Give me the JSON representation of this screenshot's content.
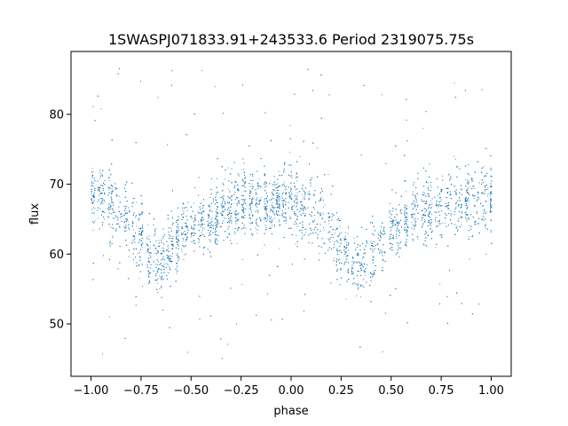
{
  "chart_data": {
    "type": "scatter",
    "title": "1SWASPJ071833.91+243533.6 Period 2319075.75s",
    "xlabel": "phase",
    "ylabel": "flux",
    "xlim": [
      -1.1,
      1.1
    ],
    "ylim": [
      42.5,
      89
    ],
    "xticks": [
      -1.0,
      -0.75,
      -0.5,
      -0.25,
      0.0,
      0.25,
      0.5,
      0.75,
      1.0
    ],
    "xtick_labels": [
      "−1.00",
      "−0.75",
      "−0.50",
      "−0.25",
      "0.00",
      "0.25",
      "0.50",
      "0.75",
      "1.00"
    ],
    "yticks": [
      50,
      60,
      70,
      80
    ],
    "ytick_labels": [
      "50",
      "60",
      "70",
      "80"
    ],
    "grid": false,
    "legend": "none",
    "point_color": "#1f77b4",
    "profile": {
      "description_phase": [
        -1.0,
        -0.95,
        -0.9,
        -0.85,
        -0.8,
        -0.75,
        -0.7,
        -0.65,
        -0.6,
        -0.55,
        -0.5,
        -0.45,
        -0.4,
        -0.35,
        -0.3,
        -0.25,
        -0.2,
        -0.15,
        -0.1,
        -0.05,
        0.0,
        0.05,
        0.1,
        0.15,
        0.2,
        0.25,
        0.3,
        0.35,
        0.4,
        0.45,
        0.5,
        0.55,
        0.6,
        0.65,
        0.7,
        0.75,
        0.8,
        0.85,
        0.9,
        0.95,
        1.0
      ],
      "median_flux": [
        68,
        68.5,
        67,
        65.5,
        64,
        62,
        60,
        59,
        61,
        63,
        64,
        64,
        65.5,
        66,
        66.5,
        67.5,
        67.5,
        67,
        67,
        68,
        68,
        67,
        66,
        65,
        63,
        61,
        59,
        58,
        60,
        62,
        64,
        64,
        65.5,
        66,
        66.5,
        67.5,
        67.5,
        67,
        67,
        68,
        68
      ],
      "spread": [
        3.5,
        3.5,
        3.5,
        3.5,
        3.5,
        3.5,
        3,
        3,
        3,
        3,
        2.5,
        2.5,
        3,
        3,
        3,
        3,
        3,
        3,
        3,
        3,
        3.5,
        3.5,
        3.5,
        3.5,
        3.5,
        3.5,
        3,
        3,
        3,
        3,
        2.5,
        2.5,
        3,
        3,
        3,
        3,
        3,
        3,
        3,
        3,
        3.5
      ]
    },
    "n_points": 9000,
    "outlier_fraction": 0.05,
    "outlier_range": [
      45,
      87
    ]
  }
}
